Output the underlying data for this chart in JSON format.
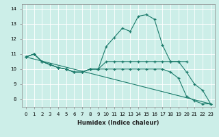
{
  "xlabel": "Humidex (Indice chaleur)",
  "bg_color": "#cceee8",
  "line_color": "#1a7a6a",
  "xlim": [
    -0.5,
    23.5
  ],
  "ylim": [
    7.5,
    14.3
  ],
  "x_ticks": [
    0,
    1,
    2,
    3,
    4,
    5,
    6,
    7,
    8,
    9,
    10,
    11,
    12,
    13,
    14,
    15,
    16,
    17,
    18,
    19,
    20,
    21,
    22,
    23
  ],
  "y_ticks": [
    8,
    9,
    10,
    11,
    12,
    13,
    14
  ],
  "line1_x": [
    0,
    1,
    2,
    3,
    4,
    5,
    6,
    7,
    8,
    9,
    10,
    11,
    12,
    13,
    14,
    15,
    16,
    17,
    18,
    19,
    20,
    21,
    22,
    23
  ],
  "line1_y": [
    10.8,
    11.0,
    10.5,
    10.3,
    10.1,
    10.0,
    9.8,
    9.8,
    10.0,
    10.0,
    11.5,
    12.1,
    12.7,
    12.5,
    13.5,
    13.6,
    13.3,
    11.6,
    10.5,
    10.5,
    9.8,
    9.0,
    8.6,
    7.7
  ],
  "line2_x": [
    0,
    1,
    2,
    3,
    4,
    5,
    6,
    7,
    8,
    9,
    10,
    11,
    12,
    13,
    14,
    15,
    16,
    17,
    18,
    19,
    20
  ],
  "line2_y": [
    10.8,
    11.0,
    10.5,
    10.3,
    10.1,
    10.0,
    9.8,
    9.8,
    10.0,
    10.0,
    10.5,
    10.5,
    10.5,
    10.5,
    10.5,
    10.5,
    10.5,
    10.5,
    10.5,
    10.5,
    10.5
  ],
  "line3_x": [
    0,
    1,
    2,
    3,
    4,
    5,
    6,
    7,
    8,
    9,
    10,
    11,
    12,
    13,
    14,
    15,
    16,
    17,
    18,
    19,
    20,
    21,
    22,
    23
  ],
  "line3_y": [
    10.8,
    11.0,
    10.5,
    10.3,
    10.1,
    10.0,
    9.8,
    9.8,
    10.0,
    10.0,
    10.0,
    10.0,
    10.0,
    10.0,
    10.0,
    10.0,
    10.0,
    10.0,
    9.8,
    9.4,
    8.2,
    7.9,
    7.7,
    7.7
  ],
  "line4_x": [
    0,
    23
  ],
  "line4_y": [
    10.8,
    7.7
  ]
}
